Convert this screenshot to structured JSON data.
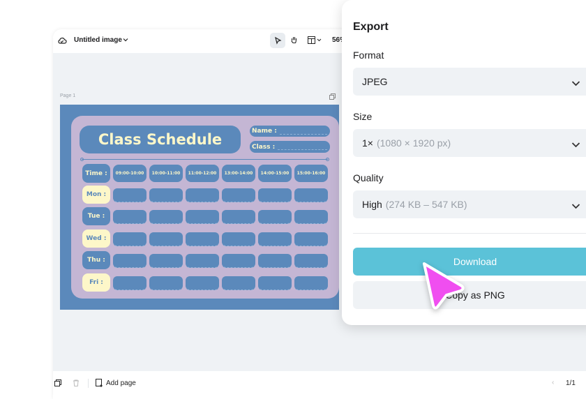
{
  "toolbar": {
    "doc_title": "Untitled image",
    "zoom": "56%",
    "icons": [
      "cloud-icon",
      "chevron-down-icon",
      "pointer-icon",
      "hand-icon",
      "layout-icon"
    ]
  },
  "canvas": {
    "page_label": "Page 1"
  },
  "design": {
    "title": "Class Schedule",
    "name_label": "Name :",
    "class_label": "Class :",
    "time_label": "Time :",
    "times": [
      "09:00-10:00",
      "10:00-11:00",
      "11:00-12:00",
      "13:00-14:00",
      "14:00-15:00",
      "15:00-16:00"
    ],
    "days": [
      "Mon :",
      "Tue :",
      "Wed :",
      "Thu :",
      "Fri :"
    ],
    "colors": {
      "background": "#5b89bb",
      "card": "#c4b6d4",
      "cream": "#fdf7c9"
    }
  },
  "bottombar": {
    "add_page": "Add page",
    "pagination": "1/1"
  },
  "export": {
    "title": "Export",
    "format_label": "Format",
    "format_value": "JPEG",
    "size_label": "Size",
    "size_value": "1×",
    "size_detail": "(1080 × 1920 px)",
    "quality_label": "Quality",
    "quality_value": "High",
    "quality_detail": "(274 KB – 547 KB)",
    "download": "Download",
    "copy": "Copy as PNG",
    "colors": {
      "download": "#5bc2d8",
      "cursor": "#f04ef0"
    }
  }
}
